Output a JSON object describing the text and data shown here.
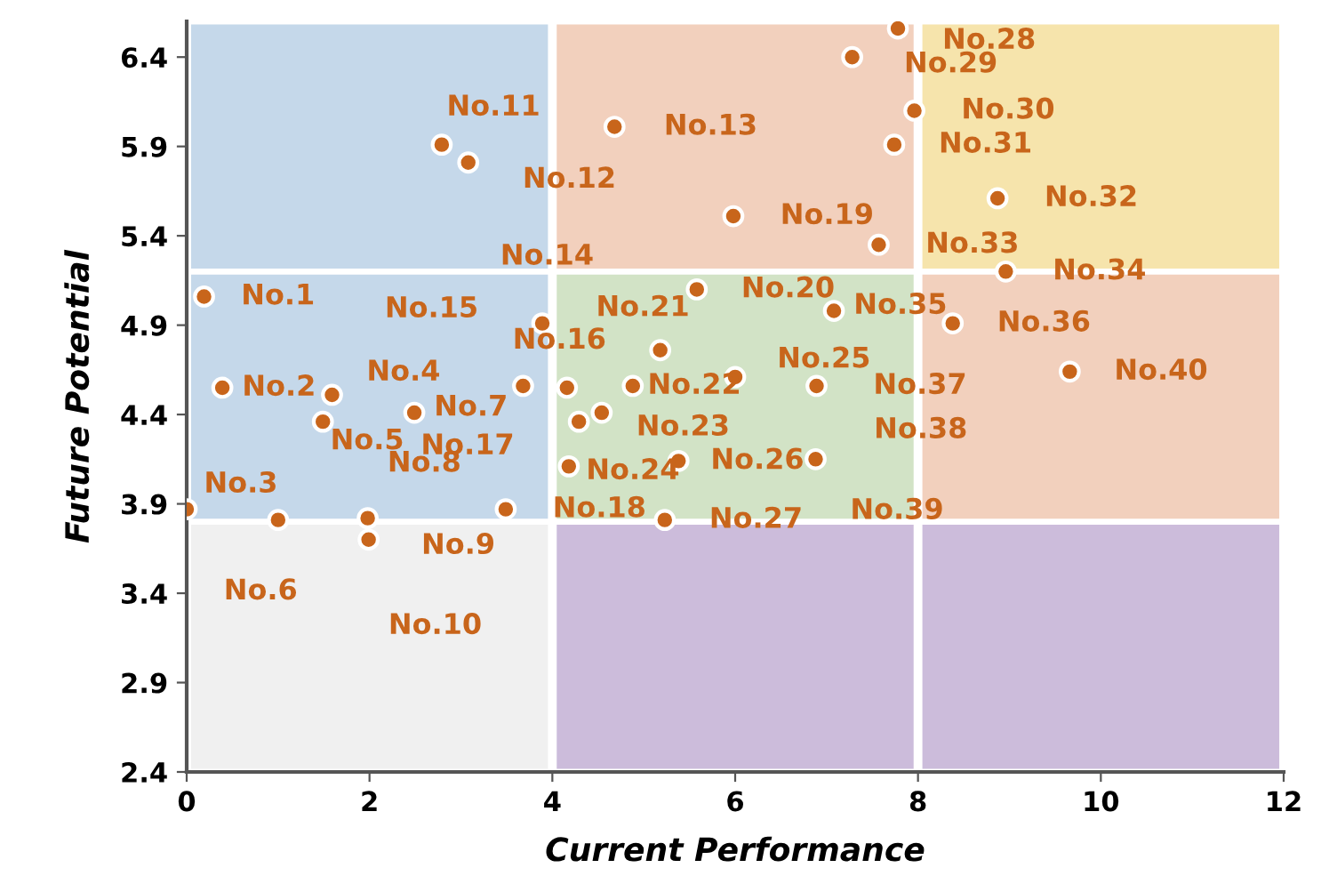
{
  "chart_data": {
    "type": "scatter",
    "xlabel": "Current Performance",
    "ylabel": "Future Potential",
    "xlim": [
      0,
      12
    ],
    "ylim": [
      2.4,
      6.6
    ],
    "xticks": [
      0,
      2,
      4,
      6,
      8,
      10,
      12
    ],
    "yticks": [
      2.4,
      2.9,
      3.4,
      3.9,
      4.4,
      4.9,
      5.4,
      5.9,
      6.4
    ],
    "grid": false,
    "legend": false,
    "marker": "circle",
    "series": [
      {
        "color": "#c8651b",
        "x": [
          0.19,
          0.39,
          0.0,
          1.59,
          1.49,
          1.0,
          2.49,
          1.98,
          null,
          1.99,
          2.79,
          3.08,
          4.68,
          3.89,
          3.68,
          4.16,
          4.29,
          3.49,
          5.98,
          5.58,
          5.18,
          4.88,
          4.54,
          4.18,
          6.0,
          5.38,
          5.23,
          7.78,
          7.28,
          7.96,
          7.74,
          8.87,
          7.57,
          8.96,
          7.08,
          8.38,
          6.89,
          null,
          6.88,
          9.66
        ],
        "values": [
          5.06,
          4.55,
          3.87,
          4.51,
          4.36,
          3.81,
          4.41,
          3.82,
          null,
          3.7,
          5.91,
          5.81,
          6.01,
          4.91,
          4.56,
          4.55,
          4.36,
          3.87,
          5.51,
          5.1,
          4.76,
          4.56,
          4.41,
          4.11,
          4.61,
          4.14,
          3.81,
          6.56,
          6.4,
          6.1,
          5.91,
          5.61,
          5.35,
          5.2,
          4.98,
          4.91,
          4.56,
          null,
          4.15,
          4.64
        ]
      }
    ],
    "annotations": [
      {
        "text": "No.1",
        "x": 0.19,
        "y": 5.06
      },
      {
        "text": "No.2",
        "x": 0.39,
        "y": 4.55
      },
      {
        "text": "No.3",
        "x": 0.0,
        "y": 3.87
      },
      {
        "text": "No.4",
        "x": 1.59,
        "y": 4.51
      },
      {
        "text": "No.5",
        "x": 1.49,
        "y": 4.36
      },
      {
        "text": "No.6",
        "x": 1.0,
        "y": 3.81
      },
      {
        "text": "No.7",
        "x": 2.49,
        "y": 4.41
      },
      {
        "text": "No.8",
        "x": 1.98,
        "y": 3.82
      },
      {
        "text": "No.9",
        "x": 2.0,
        "y": 3.72
      },
      {
        "text": "No.10",
        "x": 1.99,
        "y": 3.7
      },
      {
        "text": "No.11",
        "x": 2.79,
        "y": 5.91
      },
      {
        "text": "No.12",
        "x": 3.08,
        "y": 5.81
      },
      {
        "text": "No.13",
        "x": 4.68,
        "y": 6.01
      },
      {
        "text": "No.14",
        "x": 3.89,
        "y": 4.91
      },
      {
        "text": "No.15",
        "x": 3.68,
        "y": 4.56
      },
      {
        "text": "No.16",
        "x": 4.16,
        "y": 4.55
      },
      {
        "text": "No.17",
        "x": 4.29,
        "y": 4.36
      },
      {
        "text": "No.18",
        "x": 3.49,
        "y": 3.87
      },
      {
        "text": "No.19",
        "x": 5.98,
        "y": 5.51
      },
      {
        "text": "No.20",
        "x": 5.58,
        "y": 5.1
      },
      {
        "text": "No.21",
        "x": 5.18,
        "y": 4.76
      },
      {
        "text": "No.22",
        "x": 4.88,
        "y": 4.56
      },
      {
        "text": "No.23",
        "x": 4.54,
        "y": 4.41
      },
      {
        "text": "No.24",
        "x": 4.18,
        "y": 4.11
      },
      {
        "text": "No.25",
        "x": 6.0,
        "y": 4.61
      },
      {
        "text": "No.26",
        "x": 5.38,
        "y": 4.14
      },
      {
        "text": "No.27",
        "x": 5.23,
        "y": 3.81
      },
      {
        "text": "No.28",
        "x": 7.78,
        "y": 6.56
      },
      {
        "text": "No.29",
        "x": 7.28,
        "y": 6.4
      },
      {
        "text": "No.30",
        "x": 7.96,
        "y": 6.1
      },
      {
        "text": "No.31",
        "x": 7.74,
        "y": 5.91
      },
      {
        "text": "No.32",
        "x": 8.87,
        "y": 5.61
      },
      {
        "text": "No.33",
        "x": 7.57,
        "y": 5.35
      },
      {
        "text": "No.34",
        "x": 8.96,
        "y": 5.2
      },
      {
        "text": "No.35",
        "x": 7.08,
        "y": 4.98
      },
      {
        "text": "No.36",
        "x": 8.38,
        "y": 4.91
      },
      {
        "text": "No.37",
        "x": 6.89,
        "y": 4.56
      },
      {
        "text": "No.38",
        "x": 6.87,
        "y": 4.16
      },
      {
        "text": "No.39",
        "x": 6.88,
        "y": 4.15
      },
      {
        "text": "No.40",
        "x": 9.66,
        "y": 4.64
      }
    ]
  }
}
